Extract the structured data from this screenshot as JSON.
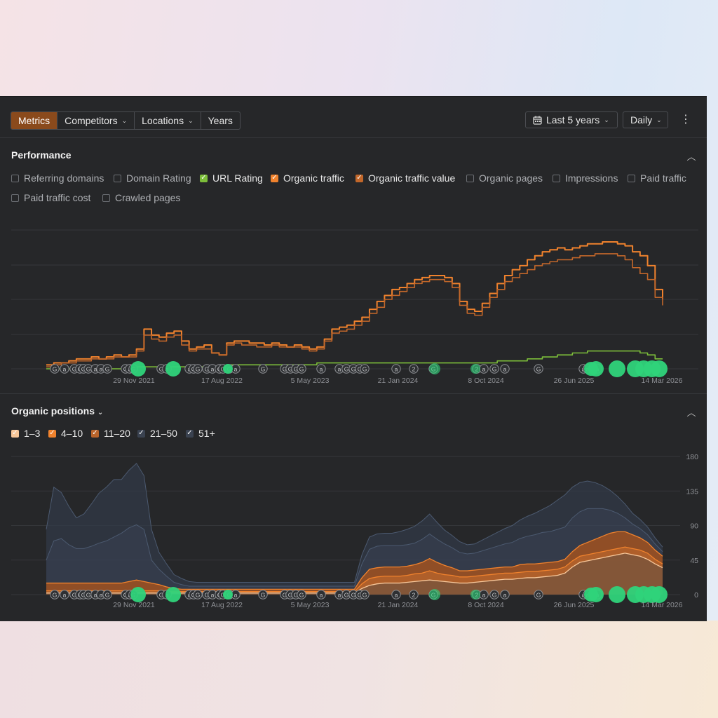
{
  "toolbar": {
    "tabs": [
      {
        "label": "Metrics",
        "active": true,
        "dropdown": false
      },
      {
        "label": "Competitors",
        "active": false,
        "dropdown": true
      },
      {
        "label": "Locations",
        "active": false,
        "dropdown": true
      },
      {
        "label": "Years",
        "active": false,
        "dropdown": false
      }
    ],
    "range_label": "Last 5 years",
    "interval_label": "Daily",
    "icons": {
      "range": "calendar-icon",
      "menu": "kebab-menu-icon"
    }
  },
  "performance": {
    "title": "Performance",
    "metrics": [
      {
        "label": "Referring domains",
        "checked": false,
        "color": ""
      },
      {
        "label": "Domain Rating",
        "checked": false,
        "color": ""
      },
      {
        "label": "URL Rating",
        "checked": true,
        "color": "#7cbd3a"
      },
      {
        "label": "Organic traffic",
        "checked": true,
        "color": "#f0822d"
      },
      {
        "label": "Organic traffic value",
        "checked": true,
        "color": "#c2672a"
      },
      {
        "label": "Organic pages",
        "checked": false,
        "color": ""
      },
      {
        "label": "Impressions",
        "checked": false,
        "color": ""
      },
      {
        "label": "Paid traffic",
        "checked": false,
        "color": ""
      },
      {
        "label": "Paid traffic cost",
        "checked": false,
        "color": ""
      },
      {
        "label": "Crawled pages",
        "checked": false,
        "color": ""
      }
    ]
  },
  "organic_positions": {
    "title": "Organic positions",
    "legend": [
      {
        "label": "1–3",
        "checked": true,
        "color": "#f7c79a"
      },
      {
        "label": "4–10",
        "checked": true,
        "color": "#f0822d"
      },
      {
        "label": "11–20",
        "checked": true,
        "color": "#b9642b"
      },
      {
        "label": "21–50",
        "checked": true,
        "color": "#3c4a60"
      },
      {
        "label": "51+",
        "checked": true,
        "color": "#343c4a"
      }
    ]
  },
  "chart_data": [
    {
      "type": "line",
      "x_tick_labels": [
        "29 Nov 2021",
        "17 Aug 2022",
        "5 May 2023",
        "21 Jan 2024",
        "8 Oct 2024",
        "26 Jun 2025",
        "14 Mar 2026"
      ],
      "y_tick_labels": [],
      "grid": true,
      "series": [
        {
          "name": "Organic traffic",
          "color": "#f0822d",
          "values": [
            2,
            3,
            3,
            4,
            5,
            5,
            6,
            5,
            6,
            7,
            6,
            7,
            10,
            20,
            17,
            16,
            18,
            19,
            14,
            10,
            11,
            12,
            8,
            7,
            13,
            14,
            14,
            13,
            13,
            12,
            13,
            12,
            11,
            12,
            11,
            10,
            11,
            15,
            20,
            21,
            22,
            24,
            26,
            30,
            34,
            37,
            40,
            41,
            43,
            45,
            46,
            47,
            47,
            46,
            43,
            34,
            30,
            29,
            33,
            38,
            43,
            47,
            50,
            52,
            55,
            57,
            59,
            60,
            61,
            60,
            61,
            62,
            63,
            63,
            64,
            64,
            63,
            62,
            59,
            57,
            52,
            40,
            35
          ]
        },
        {
          "name": "Organic traffic value",
          "color": "#c2672a",
          "values": [
            1,
            2,
            3,
            3,
            4,
            4,
            5,
            5,
            5,
            6,
            6,
            6,
            9,
            17,
            15,
            14,
            16,
            17,
            12,
            9,
            10,
            10,
            8,
            7,
            12,
            13,
            12,
            12,
            11,
            11,
            12,
            11,
            11,
            11,
            10,
            9,
            10,
            14,
            18,
            19,
            20,
            22,
            24,
            28,
            31,
            35,
            37,
            39,
            41,
            43,
            44,
            45,
            45,
            44,
            41,
            32,
            28,
            27,
            31,
            36,
            40,
            44,
            46,
            48,
            50,
            52,
            53,
            54,
            55,
            55,
            56,
            57,
            57,
            58,
            58,
            58,
            57,
            55,
            51,
            48,
            45,
            36,
            32
          ]
        },
        {
          "name": "URL Rating",
          "color": "#7cbd3a",
          "values": [
            0,
            0,
            0,
            0,
            0,
            0,
            0,
            0,
            0,
            0,
            0,
            1,
            1,
            1,
            1,
            1,
            1,
            1,
            1,
            1,
            1,
            1,
            1,
            1,
            2,
            2,
            2,
            2,
            2,
            2,
            2,
            2,
            2,
            2,
            2,
            2,
            3,
            3,
            3,
            3,
            3,
            3,
            3,
            3,
            3,
            3,
            3,
            3,
            3,
            3,
            3,
            3,
            3,
            3,
            3,
            3,
            3,
            3,
            3,
            3,
            4,
            4,
            4,
            4,
            5,
            5,
            6,
            6,
            7,
            7,
            8,
            8,
            9,
            9,
            9,
            9,
            9,
            9,
            9,
            8,
            7,
            5,
            5
          ]
        }
      ]
    },
    {
      "type": "area",
      "x_tick_labels": [
        "29 Nov 2021",
        "17 Aug 2022",
        "5 May 2023",
        "21 Jan 2024",
        "8 Oct 2024",
        "26 Jun 2025",
        "14 Mar 2026"
      ],
      "y_tick_labels": [
        "180",
        "135",
        "90",
        "45",
        "0"
      ],
      "ylim": [
        0,
        180
      ],
      "grid": true,
      "stacked": true,
      "series": [
        {
          "name": "1–3",
          "color": "#f7c79a",
          "values": [
            2,
            2,
            2,
            2,
            2,
            2,
            2,
            2,
            2,
            2,
            2,
            2,
            2,
            2,
            2,
            2,
            2,
            2,
            2,
            2,
            2,
            2,
            2,
            2,
            2,
            2,
            2,
            2,
            2,
            2,
            2,
            2,
            2,
            2,
            2,
            2,
            2,
            2,
            2,
            2,
            2,
            2,
            8,
            12,
            14,
            15,
            15,
            15,
            16,
            17,
            18,
            19,
            18,
            17,
            16,
            15,
            15,
            16,
            17,
            18,
            19,
            20,
            20,
            21,
            22,
            22,
            23,
            24,
            25,
            28,
            36,
            42,
            44,
            46,
            48,
            50,
            52,
            54,
            52,
            50,
            46,
            40,
            35
          ]
        },
        {
          "name": "4–10",
          "color": "#f0822d",
          "values": [
            3,
            3,
            3,
            3,
            3,
            3,
            3,
            3,
            3,
            3,
            3,
            3,
            3,
            3,
            3,
            3,
            2,
            2,
            2,
            2,
            2,
            2,
            2,
            2,
            2,
            2,
            2,
            2,
            2,
            2,
            2,
            2,
            2,
            2,
            2,
            2,
            2,
            2,
            2,
            2,
            2,
            2,
            6,
            9,
            9,
            9,
            9,
            9,
            9,
            10,
            10,
            12,
            10,
            9,
            9,
            8,
            8,
            8,
            8,
            8,
            8,
            8,
            8,
            8,
            8,
            8,
            8,
            8,
            8,
            8,
            8,
            8,
            8,
            8,
            8,
            8,
            8,
            8,
            8,
            8,
            8,
            6,
            5
          ]
        },
        {
          "name": "11–20",
          "color": "#b9642b",
          "values": [
            10,
            10,
            10,
            10,
            10,
            10,
            10,
            10,
            10,
            10,
            10,
            12,
            14,
            12,
            10,
            8,
            6,
            4,
            3,
            3,
            3,
            3,
            3,
            3,
            3,
            3,
            3,
            3,
            3,
            3,
            3,
            3,
            3,
            3,
            3,
            3,
            3,
            3,
            3,
            3,
            3,
            3,
            8,
            12,
            12,
            12,
            12,
            12,
            12,
            12,
            14,
            16,
            14,
            12,
            10,
            8,
            8,
            8,
            8,
            8,
            8,
            8,
            8,
            10,
            10,
            10,
            10,
            10,
            10,
            10,
            12,
            14,
            16,
            18,
            20,
            22,
            22,
            20,
            18,
            16,
            14,
            12,
            10
          ]
        },
        {
          "name": "21–50",
          "color": "#3c4a60",
          "values": [
            30,
            55,
            58,
            50,
            45,
            45,
            48,
            52,
            55,
            60,
            65,
            70,
            72,
            68,
            30,
            20,
            14,
            8,
            6,
            4,
            4,
            4,
            4,
            4,
            4,
            4,
            4,
            4,
            4,
            4,
            4,
            4,
            4,
            4,
            4,
            4,
            4,
            4,
            4,
            4,
            4,
            4,
            18,
            26,
            28,
            28,
            28,
            28,
            28,
            28,
            30,
            32,
            30,
            28,
            26,
            24,
            22,
            22,
            24,
            26,
            28,
            30,
            32,
            34,
            36,
            38,
            40,
            40,
            42,
            42,
            44,
            44,
            44,
            40,
            36,
            30,
            24,
            18,
            14,
            12,
            10,
            8,
            6
          ]
        },
        {
          "name": "51+",
          "color": "#343c4a",
          "values": [
            40,
            70,
            60,
            50,
            40,
            45,
            55,
            65,
            70,
            75,
            70,
            75,
            80,
            70,
            40,
            22,
            16,
            10,
            8,
            6,
            5,
            5,
            5,
            5,
            5,
            5,
            5,
            5,
            5,
            5,
            5,
            5,
            5,
            5,
            5,
            5,
            5,
            5,
            5,
            5,
            5,
            5,
            12,
            16,
            16,
            16,
            16,
            18,
            20,
            22,
            24,
            26,
            22,
            18,
            16,
            14,
            12,
            12,
            14,
            16,
            18,
            20,
            22,
            24,
            26,
            28,
            30,
            34,
            38,
            42,
            40,
            38,
            36,
            34,
            30,
            26,
            22,
            18,
            14,
            12,
            10,
            8,
            6
          ]
        }
      ]
    }
  ]
}
